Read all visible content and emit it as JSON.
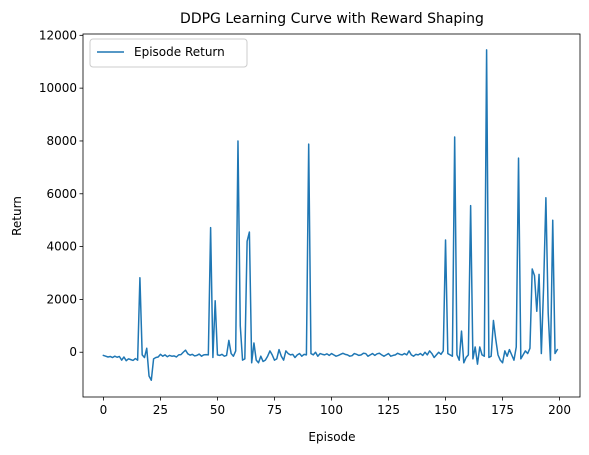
{
  "chart_data": {
    "type": "line",
    "title": "DDPG Learning Curve with Reward Shaping",
    "xlabel": "Episode",
    "ylabel": "Return",
    "xlim": [
      -8.95,
      208.95
    ],
    "ylim": [
      -1695,
      12050
    ],
    "xticks": [
      0,
      25,
      50,
      75,
      100,
      125,
      150,
      175,
      200
    ],
    "yticks": [
      0,
      2000,
      4000,
      6000,
      8000,
      10000,
      12000
    ],
    "grid": false,
    "legend_position": "upper left",
    "series": [
      {
        "name": "Episode Return",
        "color": "#1f77b4",
        "x": [
          0,
          1,
          2,
          3,
          4,
          5,
          6,
          7,
          8,
          9,
          10,
          11,
          12,
          13,
          14,
          15,
          16,
          17,
          18,
          19,
          20,
          21,
          22,
          23,
          24,
          25,
          26,
          27,
          28,
          29,
          30,
          31,
          32,
          33,
          34,
          35,
          36,
          37,
          38,
          39,
          40,
          41,
          42,
          43,
          44,
          45,
          46,
          47,
          48,
          49,
          50,
          51,
          52,
          53,
          54,
          55,
          56,
          57,
          58,
          59,
          60,
          61,
          62,
          63,
          64,
          65,
          66,
          67,
          68,
          69,
          70,
          71,
          72,
          73,
          74,
          75,
          76,
          77,
          78,
          79,
          80,
          81,
          82,
          83,
          84,
          85,
          86,
          87,
          88,
          89,
          90,
          91,
          92,
          93,
          94,
          95,
          96,
          97,
          98,
          99,
          100,
          101,
          102,
          103,
          104,
          105,
          106,
          107,
          108,
          109,
          110,
          111,
          112,
          113,
          114,
          115,
          116,
          117,
          118,
          119,
          120,
          121,
          122,
          123,
          124,
          125,
          126,
          127,
          128,
          129,
          130,
          131,
          132,
          133,
          134,
          135,
          136,
          137,
          138,
          139,
          140,
          141,
          142,
          143,
          144,
          145,
          146,
          147,
          148,
          149,
          150,
          151,
          152,
          153,
          154,
          155,
          156,
          157,
          158,
          159,
          160,
          161,
          162,
          163,
          164,
          165,
          166,
          167,
          168,
          169,
          170,
          171,
          172,
          173,
          174,
          175,
          176,
          177,
          178,
          179,
          180,
          181,
          182,
          183,
          184,
          185,
          186,
          187,
          188,
          189,
          190,
          191,
          192,
          193,
          194,
          195,
          196,
          197,
          198,
          199
        ],
        "y": [
          -120,
          -150,
          -180,
          -160,
          -200,
          -150,
          -190,
          -160,
          -300,
          -180,
          -320,
          -250,
          -280,
          -310,
          -240,
          -300,
          2820,
          -100,
          -200,
          150,
          -900,
          -1060,
          -250,
          -200,
          -180,
          -80,
          -150,
          -100,
          -170,
          -120,
          -150,
          -140,
          -180,
          -100,
          -90,
          0,
          80,
          -60,
          -110,
          -80,
          -140,
          -120,
          -70,
          -150,
          -100,
          -90,
          -100,
          4720,
          -200,
          1950,
          -100,
          -120,
          -80,
          -150,
          -120,
          450,
          -50,
          -150,
          50,
          8000,
          1000,
          -300,
          -250,
          4200,
          4550,
          -400,
          350,
          -300,
          -400,
          -150,
          -350,
          -300,
          -150,
          50,
          -100,
          -300,
          -250,
          100,
          -150,
          -300,
          50,
          -50,
          -100,
          -80,
          -200,
          -100,
          -50,
          -150,
          -80,
          -100,
          7880,
          -50,
          -100,
          0,
          -150,
          -50,
          -80,
          -100,
          -60,
          -120,
          -50,
          -100,
          -150,
          -120,
          -80,
          -40,
          -80,
          -100,
          -150,
          -130,
          -50,
          -80,
          -120,
          -100,
          -40,
          -50,
          -150,
          -100,
          -50,
          -120,
          -60,
          -40,
          -100,
          -150,
          -100,
          -50,
          -150,
          -120,
          -100,
          -40,
          -80,
          -100,
          -50,
          -100,
          50,
          -100,
          -150,
          -80,
          -100,
          -50,
          -120,
          0,
          -100,
          50,
          -50,
          -200,
          -100,
          0,
          -80,
          50,
          4250,
          -50,
          -100,
          -150,
          8150,
          -100,
          -300,
          800,
          -400,
          -200,
          -100,
          5550,
          -250,
          200,
          -450,
          200,
          -100,
          -150,
          11450,
          -200,
          -150,
          1200,
          500,
          -100,
          -300,
          -400,
          50,
          -150,
          100,
          -100,
          -300,
          200,
          7350,
          -250,
          -100,
          50,
          -50,
          150,
          3150,
          2900,
          1550,
          2950,
          -50,
          2500,
          5850,
          1500,
          -300,
          5000,
          -50,
          100
        ]
      }
    ]
  }
}
